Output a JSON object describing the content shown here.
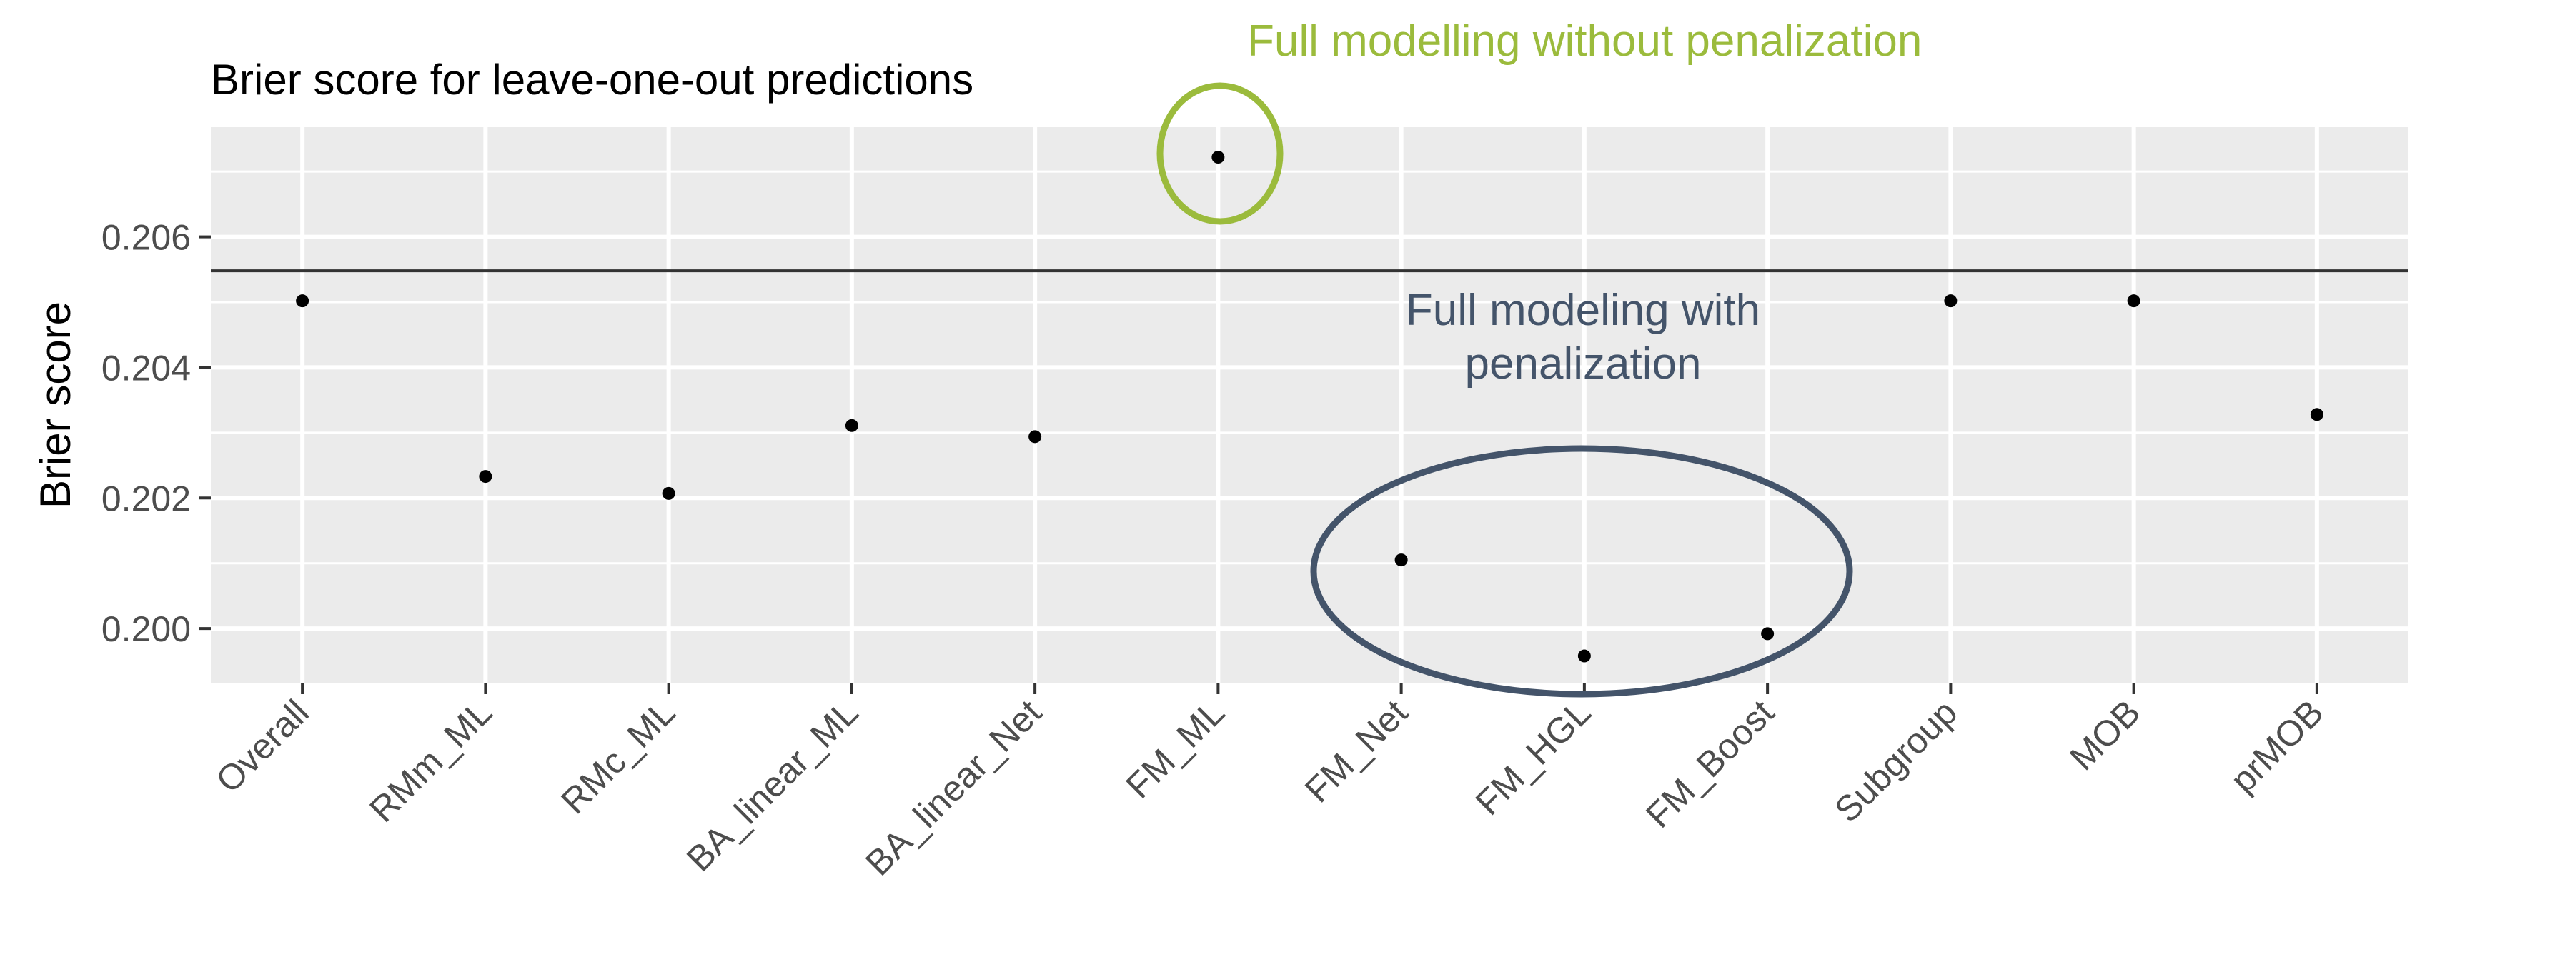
{
  "chart_data": {
    "type": "scatter",
    "title": "Brier score for leave-one-out predictions",
    "xlabel": "",
    "ylabel": "Brier score",
    "categories": [
      "Overall",
      "RMm_ML",
      "RMc_ML",
      "BA_linear_ML",
      "BA_linear_Net",
      "FM_ML",
      "FM_Net",
      "FM_HGL",
      "FM_Boost",
      "Subgroup",
      "MOB",
      "prMOB"
    ],
    "values": [
      0.20502,
      0.20233,
      0.20207,
      0.20311,
      0.20294,
      0.20722,
      0.20105,
      0.19958,
      0.19992,
      0.20502,
      0.20502,
      0.20328
    ],
    "yticks": [
      0.2,
      0.202,
      0.204,
      0.206
    ],
    "ytick_labels": [
      "0.200",
      "0.202",
      "0.204",
      "0.206"
    ],
    "ylim": [
      0.19917,
      0.20768
    ],
    "reference_line": 0.20548,
    "grid": true,
    "annotations": [
      {
        "text": "Full modelling without penalization",
        "color": "#9bbb3c",
        "highlights": "FM_ML"
      },
      {
        "text_lines": [
          "Full modeling with",
          "penalization"
        ],
        "color": "#44546a",
        "highlights": [
          "FM_Net",
          "FM_HGL",
          "FM_Boost"
        ]
      }
    ]
  },
  "colors": {
    "panel": "#ebebeb",
    "grid": "#ffffff",
    "points": "#000000",
    "reference_line": "#333333",
    "tick_text": "#4d4d4d"
  }
}
